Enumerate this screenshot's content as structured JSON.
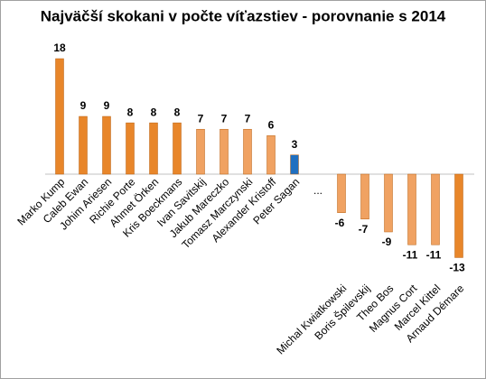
{
  "chart_data": {
    "type": "bar",
    "title": "Najväčší skokani v počte víťazstiev - porovnanie s 2014",
    "categories": [
      "Marko Kump",
      "Caleb Ewan",
      "Johim Ariesen",
      "Richie Porte",
      "Ahmet Örken",
      "Kris Boeckmans",
      "Ivan Savitskij",
      "Jakub Mareczko",
      "Tomasz Marczynski",
      "Alexander Kristoff",
      "Peter Sagan",
      "...",
      "Michal Kwiatkowski",
      "Boris Špilevskij",
      "Theo Bos",
      "Magnus Cort",
      "Marcel Kittel",
      "Arnaud Démare"
    ],
    "values": [
      18,
      9,
      9,
      8,
      8,
      8,
      7,
      7,
      7,
      6,
      3,
      null,
      -6,
      -7,
      -9,
      -11,
      -11,
      -13
    ],
    "colors": [
      "#e8862a",
      "#e8862a",
      "#e8862a",
      "#e8862a",
      "#e8862a",
      "#e8862a",
      "#f0a262",
      "#f0a262",
      "#f0a262",
      "#f0a262",
      "#1f6fc0",
      null,
      "#f0a262",
      "#f0a262",
      "#f0a262",
      "#f0a262",
      "#f0a262",
      "#e8862a"
    ]
  }
}
